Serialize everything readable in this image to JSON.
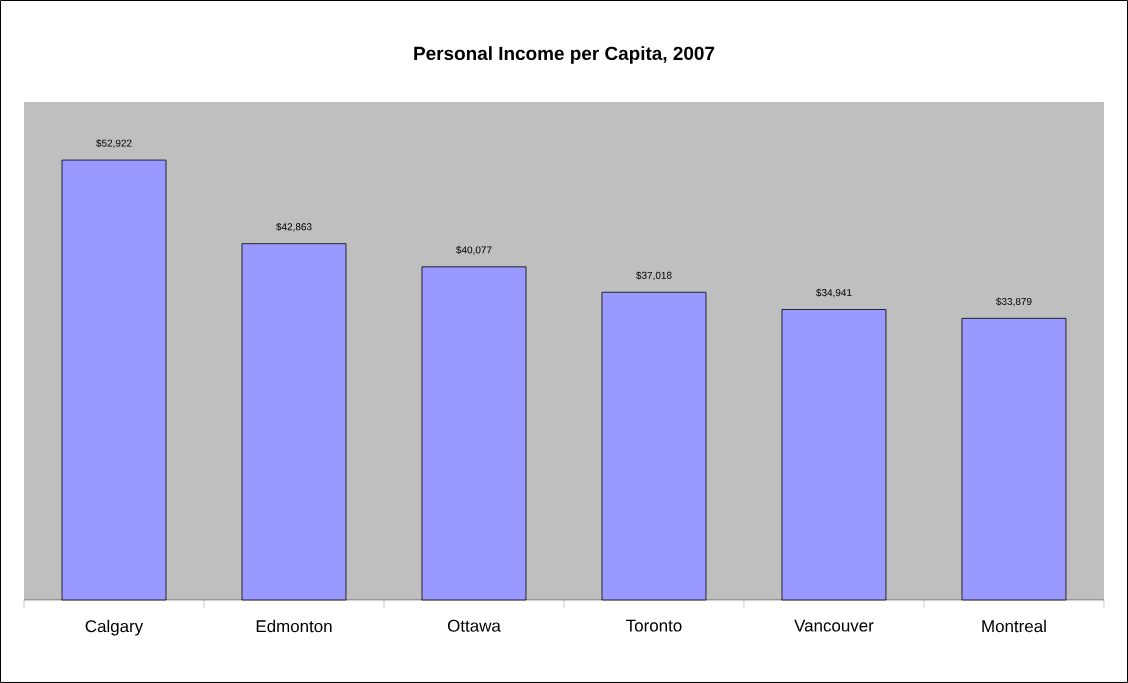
{
  "chart_data": {
    "type": "bar",
    "title": "Personal Income per Capita, 2007",
    "categories": [
      "Calgary",
      "Edmonton",
      "Ottawa",
      "Toronto",
      "Vancouver",
      "Montreal"
    ],
    "values": [
      52922,
      42863,
      40077,
      37018,
      34941,
      33879
    ],
    "value_labels": [
      "$52,922",
      "$42,863",
      "$40,077",
      "$37,018",
      "$34,941",
      "$33,879"
    ],
    "color": "#9999ff"
  }
}
